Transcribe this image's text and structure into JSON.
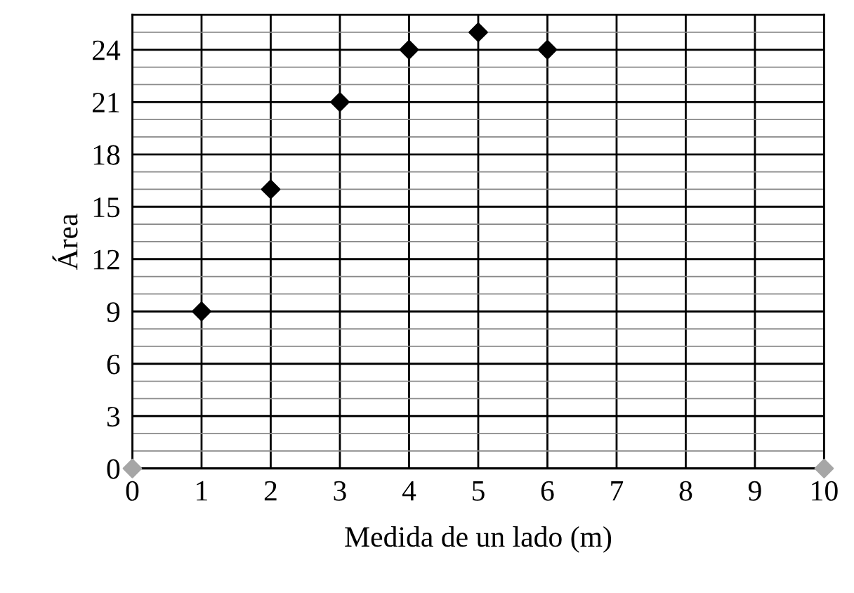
{
  "chart_data": {
    "type": "scatter",
    "xlabel": "Medida de un lado (m)",
    "ylabel": "Área",
    "series": [
      {
        "color": "#000000",
        "x": [
          1,
          2,
          3,
          4,
          5,
          6
        ],
        "values": [
          9,
          16,
          21,
          24,
          25,
          24
        ]
      },
      {
        "color": "#a6a6a6",
        "x": [
          0,
          10
        ],
        "values": [
          0,
          0
        ]
      }
    ],
    "xlim": [
      0,
      10
    ],
    "xticks": [
      0,
      1,
      2,
      3,
      4,
      5,
      6,
      7,
      8,
      9,
      10
    ],
    "ylim": [
      0,
      26
    ],
    "yticks": [
      0,
      {
        "value": 1,
        "label": null
      },
      {
        "value": 2,
        "label": null
      },
      3,
      {
        "value": 4,
        "label": null
      },
      {
        "value": 5,
        "label": null
      },
      6,
      {
        "value": 7,
        "label": null
      },
      {
        "value": 8,
        "label": null
      },
      9,
      {
        "value": 10,
        "label": null
      },
      {
        "value": 11,
        "label": null
      },
      12,
      {
        "value": 13,
        "label": null
      },
      {
        "value": 14,
        "label": null
      },
      15,
      {
        "value": 16,
        "label": null
      },
      {
        "value": 17,
        "label": null
      },
      18,
      {
        "value": 19,
        "label": null
      },
      {
        "value": 20,
        "label": null
      },
      21,
      {
        "value": 22,
        "label": null
      },
      {
        "value": 23,
        "label": null
      },
      24,
      {
        "value": 25,
        "label": null
      },
      {
        "value": 26,
        "label": null
      }
    ],
    "grid": true,
    "marker": "diamond",
    "legend": false
  }
}
